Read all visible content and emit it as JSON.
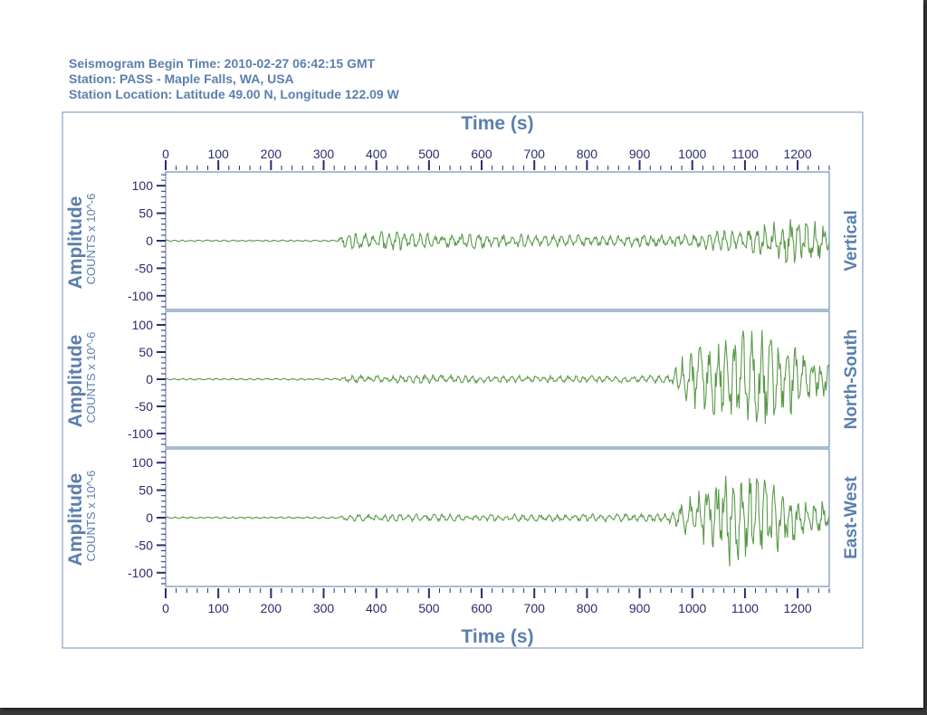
{
  "header": {
    "begin_time": "Seismogram Begin Time: 2010-02-27 06:42:15 GMT",
    "station": "Station: PASS - Maple Falls, WA, USA",
    "location": "Station Location: Latitude 49.00 N, Longitude 122.09 W"
  },
  "colors": {
    "label": "#5b7fad",
    "tick": "#2b2b6e",
    "trace": "#5a9a4a",
    "frame": "#6f8fb5"
  },
  "chart_data": {
    "type": "line",
    "title": "Time (s)",
    "xlabel": "Time (s)",
    "xlim": [
      0,
      1260
    ],
    "x_ticks": [
      0,
      100,
      200,
      300,
      400,
      500,
      600,
      700,
      800,
      900,
      1000,
      1100,
      1200
    ],
    "x_tick_labels": [
      "0",
      "100",
      "200",
      "300",
      "400",
      "500",
      "600",
      "700",
      "800",
      "900",
      "1000",
      "1100",
      "1200"
    ],
    "ylabel": "Amplitude",
    "yunits": "COUNTS x 10^-6",
    "ylim": [
      -125,
      125
    ],
    "y_ticks": [
      100,
      50,
      0,
      -50,
      -100
    ],
    "y_tick_labels": [
      "100",
      "50",
      "0",
      "-50",
      "-100"
    ],
    "grid": false,
    "series": [
      {
        "name": "Vertical",
        "envelope": [
          {
            "t": 0,
            "amp": 1.5
          },
          {
            "t": 325,
            "amp": 1.5
          },
          {
            "t": 340,
            "amp": 15
          },
          {
            "t": 420,
            "amp": 20
          },
          {
            "t": 500,
            "amp": 14
          },
          {
            "t": 600,
            "amp": 16
          },
          {
            "t": 700,
            "amp": 11
          },
          {
            "t": 800,
            "amp": 12
          },
          {
            "t": 900,
            "amp": 12
          },
          {
            "t": 1000,
            "amp": 13
          },
          {
            "t": 1080,
            "amp": 24
          },
          {
            "t": 1150,
            "amp": 40
          },
          {
            "t": 1200,
            "amp": 45
          },
          {
            "t": 1260,
            "amp": 30
          }
        ]
      },
      {
        "name": "North-South",
        "envelope": [
          {
            "t": 0,
            "amp": 1.5
          },
          {
            "t": 330,
            "amp": 2
          },
          {
            "t": 345,
            "amp": 7
          },
          {
            "t": 500,
            "amp": 8
          },
          {
            "t": 700,
            "amp": 7
          },
          {
            "t": 900,
            "amp": 7
          },
          {
            "t": 960,
            "amp": 9
          },
          {
            "t": 990,
            "amp": 60
          },
          {
            "t": 1060,
            "amp": 80
          },
          {
            "t": 1130,
            "amp": 105
          },
          {
            "t": 1180,
            "amp": 70
          },
          {
            "t": 1260,
            "amp": 30
          }
        ]
      },
      {
        "name": "East-West",
        "envelope": [
          {
            "t": 0,
            "amp": 1.5
          },
          {
            "t": 330,
            "amp": 2
          },
          {
            "t": 345,
            "amp": 7
          },
          {
            "t": 500,
            "amp": 7
          },
          {
            "t": 700,
            "amp": 7
          },
          {
            "t": 900,
            "amp": 8
          },
          {
            "t": 960,
            "amp": 10
          },
          {
            "t": 1000,
            "amp": 45
          },
          {
            "t": 1080,
            "amp": 95
          },
          {
            "t": 1140,
            "amp": 80
          },
          {
            "t": 1200,
            "amp": 40
          },
          {
            "t": 1260,
            "amp": 30
          }
        ]
      }
    ]
  }
}
